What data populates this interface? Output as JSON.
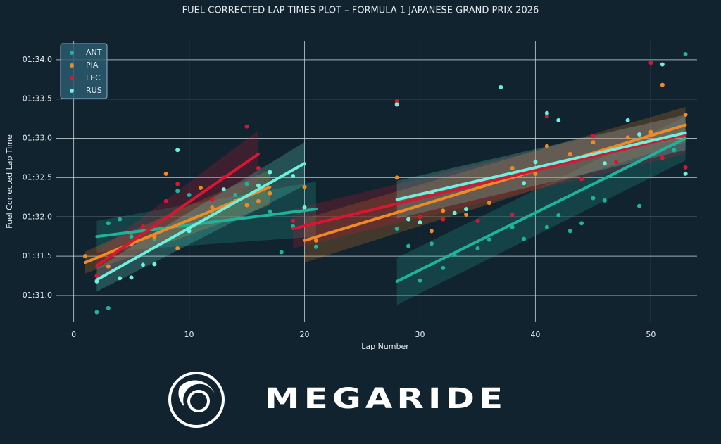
{
  "chart_data": {
    "type": "scatter",
    "title": "FUEL CORRECTED LAP TIMES PLOT – FORMULA 1 JAPANESE GRAND PRIX 2026",
    "x_label": "Lap Number",
    "y_label": "Fuel Corrected Lap Time",
    "xlim": [
      -1.5,
      54
    ],
    "ylim": [
      90.66,
      94.24
    ],
    "xticks": [
      0,
      10,
      20,
      30,
      40,
      50
    ],
    "yticks": [
      {
        "value": 91.0,
        "label": "01:31.0"
      },
      {
        "value": 91.5,
        "label": "01:31.5"
      },
      {
        "value": 92.0,
        "label": "01:32.0"
      },
      {
        "value": 92.5,
        "label": "01:32.5"
      },
      {
        "value": 93.0,
        "label": "01:33.0"
      },
      {
        "value": 93.5,
        "label": "01:33.5"
      },
      {
        "value": 94.0,
        "label": "01:34.0"
      }
    ],
    "grid": true,
    "legend": "upper left",
    "series": [
      {
        "name": "ANT",
        "color": "#1fb39c",
        "x": [
          2,
          3,
          3,
          4,
          5,
          7,
          9,
          10,
          12,
          14,
          15,
          17,
          18,
          19,
          21,
          28,
          29,
          30,
          31,
          32,
          33,
          35,
          36,
          38,
          39,
          41,
          42,
          43,
          44,
          45,
          46,
          49,
          51,
          52,
          53
        ],
        "values": [
          90.79,
          90.84,
          91.92,
          91.97,
          91.75,
          91.72,
          92.33,
          92.28,
          92.05,
          92.28,
          92.42,
          92.07,
          91.55,
          91.88,
          91.62,
          91.85,
          91.63,
          91.19,
          91.66,
          91.35,
          91.52,
          91.6,
          91.71,
          91.87,
          91.72,
          91.87,
          92.02,
          91.82,
          91.92,
          92.24,
          92.21,
          92.14,
          92.98,
          92.85,
          94.07
        ],
        "trends": [
          {
            "x": [
              2,
              21
            ],
            "y": [
              91.75,
              92.1
            ],
            "lower": [
              91.55,
              91.75
            ],
            "upper": [
              91.95,
              92.45
            ]
          },
          {
            "x": [
              28,
              53
            ],
            "y": [
              91.18,
              93.0
            ],
            "lower": [
              90.88,
              92.72
            ],
            "upper": [
              91.48,
              93.28
            ]
          }
        ]
      },
      {
        "name": "PIA",
        "color": "#f08a24",
        "x": [
          1,
          3,
          5,
          7,
          8,
          9,
          11,
          12,
          14,
          15,
          16,
          17,
          20,
          21,
          28,
          31,
          32,
          34,
          36,
          38,
          40,
          41,
          43,
          45,
          48,
          50,
          51,
          53
        ],
        "values": [
          91.5,
          91.37,
          91.65,
          91.75,
          92.55,
          91.6,
          92.37,
          92.12,
          92.2,
          92.15,
          92.2,
          92.3,
          92.38,
          91.7,
          92.5,
          91.82,
          92.08,
          92.03,
          92.18,
          92.62,
          92.55,
          92.9,
          92.8,
          92.95,
          93.01,
          93.08,
          93.68,
          93.3
        ],
        "trends": [
          {
            "x": [
              1,
              17
            ],
            "y": [
              91.42,
              92.38
            ],
            "lower": [
              91.28,
              92.15
            ],
            "upper": [
              91.56,
              92.6
            ]
          },
          {
            "x": [
              20,
              53
            ],
            "y": [
              91.7,
              93.17
            ],
            "lower": [
              91.42,
              92.95
            ],
            "upper": [
              91.98,
              93.4
            ]
          }
        ]
      },
      {
        "name": "LEC",
        "color": "#d81634",
        "x": [
          2,
          6,
          8,
          9,
          12,
          13,
          15,
          16,
          19,
          28,
          30,
          32,
          35,
          38,
          41,
          44,
          45,
          47,
          50,
          51,
          53
        ],
        "values": [
          91.25,
          91.88,
          92.2,
          92.42,
          92.22,
          92.5,
          93.15,
          92.62,
          91.95,
          93.47,
          92.0,
          91.97,
          91.95,
          92.03,
          93.28,
          92.48,
          93.03,
          92.7,
          93.96,
          92.75,
          92.63
        ],
        "trends": [
          {
            "x": [
              2,
              16
            ],
            "y": [
              91.38,
              92.8
            ],
            "lower": [
              91.2,
              92.45
            ],
            "upper": [
              91.56,
              93.1
            ]
          },
          {
            "x": [
              19,
              53
            ],
            "y": [
              91.85,
              93.05
            ],
            "lower": [
              91.6,
              92.8
            ],
            "upper": [
              92.1,
              93.3
            ]
          }
        ]
      },
      {
        "name": "RUS",
        "color": "#6ff0dc",
        "x": [
          2,
          4,
          5,
          6,
          7,
          9,
          10,
          13,
          16,
          17,
          19,
          20,
          28,
          29,
          30,
          31,
          33,
          34,
          37,
          39,
          40,
          41,
          42,
          46,
          48,
          49,
          51,
          52,
          53
        ],
        "values": [
          91.18,
          91.22,
          91.23,
          91.39,
          91.4,
          92.85,
          91.82,
          92.35,
          92.4,
          92.57,
          92.52,
          92.12,
          93.43,
          91.97,
          91.93,
          92.3,
          92.05,
          92.1,
          93.65,
          92.43,
          92.7,
          93.32,
          93.23,
          92.68,
          93.23,
          93.05,
          93.94,
          93.03,
          92.55
        ],
        "trends": [
          {
            "x": [
              2,
              20
            ],
            "y": [
              91.2,
              92.68
            ],
            "lower": [
              91.05,
              92.4
            ],
            "upper": [
              91.35,
              92.95
            ]
          },
          {
            "x": [
              28,
              53
            ],
            "y": [
              92.22,
              93.07
            ],
            "lower": [
              91.98,
              92.85
            ],
            "upper": [
              92.46,
              93.3
            ]
          }
        ]
      }
    ]
  },
  "branding": "MEGARIDE"
}
